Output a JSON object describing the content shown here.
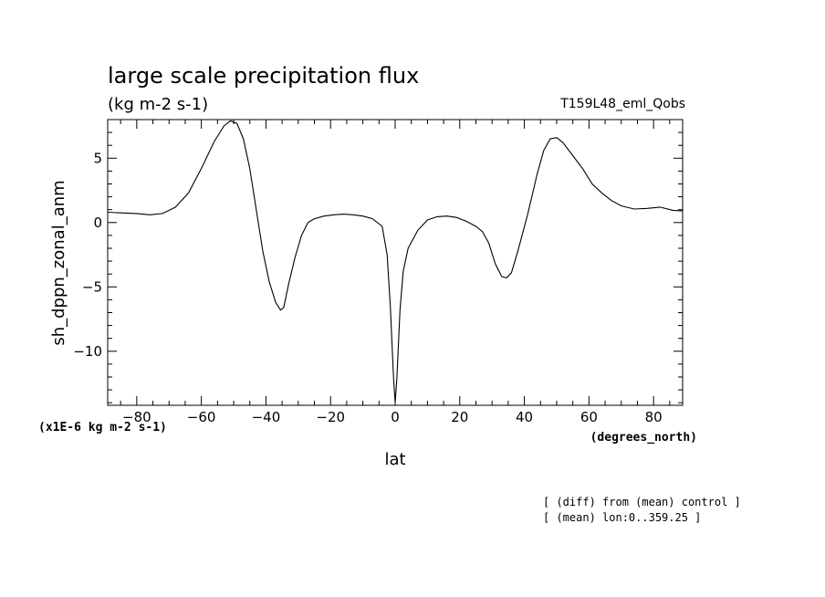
{
  "chart_data": {
    "type": "line",
    "title": "large scale precipitation flux",
    "subtitle": "(kg m-2 s-1)",
    "run_label": "T159L48_eml_Qobs",
    "xlabel": "lat",
    "x_units": "(degrees_north)",
    "ylabel": "sh_dppn_zonal_anm",
    "y_units": "(x1E-6 kg m-2 s-1)",
    "notes": [
      "[ (diff) from (mean) control ]",
      "[ (mean) lon:0..359.25 ]"
    ],
    "xlim": [
      -89,
      89
    ],
    "ylim": [
      -14.2,
      8
    ],
    "xticks": [
      -80,
      -60,
      -40,
      -20,
      0,
      20,
      40,
      60,
      80
    ],
    "yticks": [
      5,
      0,
      -5,
      -10
    ],
    "grid": false,
    "series": [
      {
        "x": [
          -89,
          -85,
          -80,
          -76,
          -72,
          -68,
          -64,
          -60,
          -56,
          -53,
          -51,
          -49,
          -47,
          -45,
          -43,
          -41,
          -39,
          -37,
          -35.5,
          -34.5,
          -33,
          -31,
          -29,
          -27,
          -25,
          -22,
          -19,
          -16,
          -13,
          -10,
          -7,
          -4,
          -2.5,
          -1.5,
          -0.5,
          0,
          0.5,
          1.5,
          2.5,
          4,
          7,
          10,
          13,
          16,
          19,
          22,
          25,
          27,
          29,
          31,
          33,
          34.5,
          36,
          38,
          41,
          44,
          46,
          48,
          50,
          52,
          55,
          58,
          61,
          64,
          67,
          70,
          74,
          78,
          82,
          86,
          89
        ],
        "y": [
          0.8,
          0.75,
          0.7,
          0.6,
          0.7,
          1.2,
          2.3,
          4.2,
          6.3,
          7.5,
          7.9,
          7.7,
          6.5,
          4.2,
          1.0,
          -2.2,
          -4.6,
          -6.2,
          -6.8,
          -6.6,
          -4.8,
          -2.7,
          -1.0,
          0.0,
          0.3,
          0.5,
          0.6,
          0.65,
          0.6,
          0.5,
          0.3,
          -0.3,
          -2.5,
          -6.5,
          -12.0,
          -14.0,
          -12.2,
          -6.8,
          -3.8,
          -2.0,
          -0.6,
          0.2,
          0.45,
          0.5,
          0.4,
          0.1,
          -0.3,
          -0.7,
          -1.6,
          -3.2,
          -4.2,
          -4.3,
          -3.9,
          -2.2,
          0.6,
          3.8,
          5.6,
          6.5,
          6.6,
          6.2,
          5.2,
          4.2,
          3.0,
          2.3,
          1.7,
          1.3,
          1.05,
          1.1,
          1.2,
          0.95,
          0.9
        ]
      }
    ]
  }
}
